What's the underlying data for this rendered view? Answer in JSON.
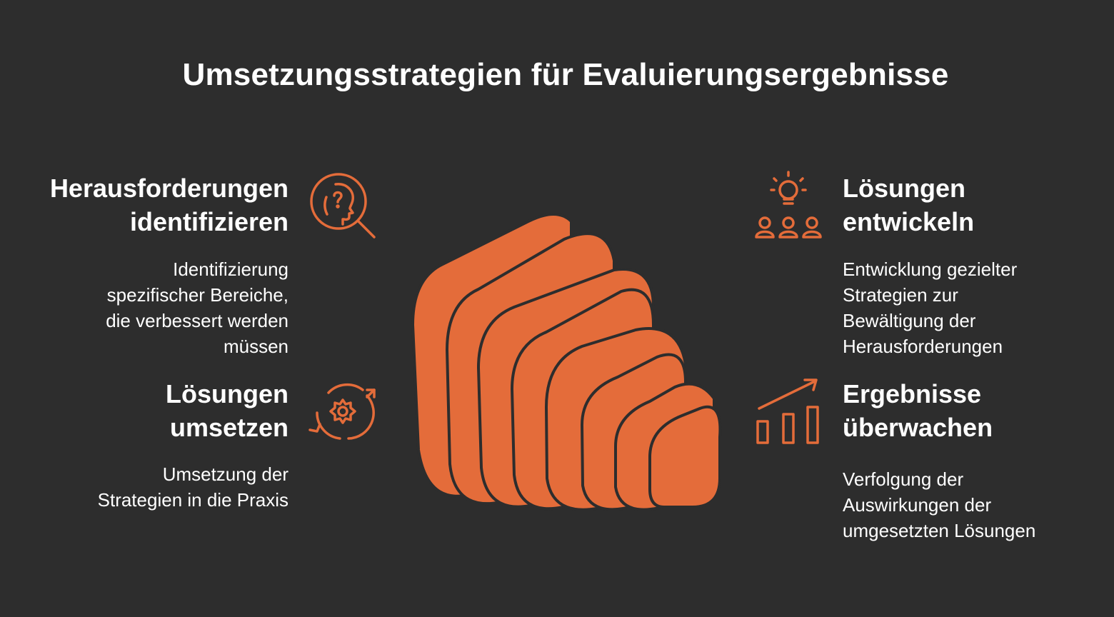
{
  "title": "Umsetzungsstrategien für Evaluierungsergebnisse",
  "accent_color": "#e46c3a",
  "background_color": "#2d2d2d",
  "items": [
    {
      "id": "challenges",
      "heading_line1": "Herausforderungen",
      "heading_line2": "identifizieren",
      "desc_lines": [
        "Identifizierung",
        "spezifischer Bereiche,",
        "die verbessert werden",
        "müssen"
      ],
      "icon": "head-question-magnifier-icon"
    },
    {
      "id": "implement",
      "heading_line1": "Lösungen",
      "heading_line2": "umsetzen",
      "desc_lines": [
        "Umsetzung der",
        "Strategien in die Praxis"
      ],
      "icon": "gear-cycle-icon"
    },
    {
      "id": "develop",
      "heading_line1": "Lösungen",
      "heading_line2": "entwickeln",
      "desc_lines": [
        "Entwicklung gezielter",
        "Strategien zur",
        "Bewältigung der",
        "Herausforderungen"
      ],
      "icon": "lightbulb-team-icon"
    },
    {
      "id": "monitor",
      "heading_line1": "Ergebnisse",
      "heading_line2": "überwachen",
      "desc_lines": [
        "Verfolgung der",
        "Auswirkungen der",
        "umgesetzten Lösungen"
      ],
      "icon": "growth-chart-icon"
    }
  ]
}
